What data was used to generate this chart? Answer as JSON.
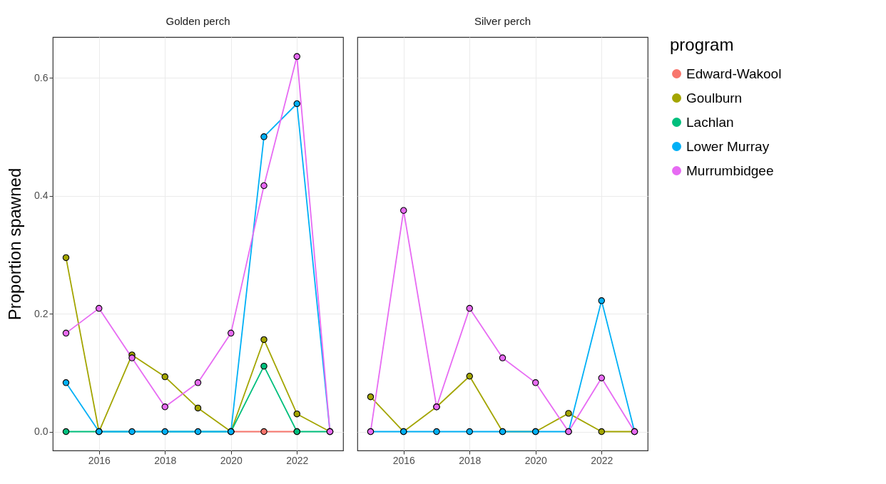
{
  "chart_data": [
    {
      "type": "line",
      "title": "Golden perch",
      "ylabel": "Proportion spawned",
      "x": [
        2015,
        2016,
        2017,
        2018,
        2019,
        2020,
        2021,
        2022,
        2023
      ],
      "xlim": [
        2014.6,
        2023.4
      ],
      "xticks": [
        2016,
        2018,
        2020,
        2022
      ],
      "ylim": [
        -0.032,
        0.669
      ],
      "yticks": [
        {
          "value": 0,
          "label": "0.0"
        },
        0.2,
        0.4,
        0.6
      ],
      "grid": true,
      "marker": "circle",
      "legend": "right",
      "legend_title": "program",
      "series": [
        {
          "name": "Edward-Wakool",
          "color": "#f8766d",
          "values": [
            null,
            null,
            null,
            null,
            null,
            0,
            0,
            0,
            null
          ]
        },
        {
          "name": "Goulburn",
          "color": "#a3a500",
          "values": [
            0.295,
            0,
            0.13,
            0.093,
            0.04,
            0,
            0.156,
            0.03,
            0
          ]
        },
        {
          "name": "Lachlan",
          "color": "#00bf7d",
          "values": [
            0,
            0,
            null,
            null,
            null,
            0,
            0.111,
            0,
            0
          ]
        },
        {
          "name": "Lower Murray",
          "color": "#00b0f6",
          "values": [
            0.083,
            0,
            0,
            0,
            0,
            0,
            0.5,
            0.556,
            0
          ]
        },
        {
          "name": "Murrumbidgee",
          "color": "#e76bf3",
          "values": [
            0.167,
            0.209,
            0.125,
            0.042,
            0.083,
            0.167,
            0.417,
            0.636,
            0
          ]
        }
      ]
    },
    {
      "type": "line",
      "title": "Silver perch",
      "x": [
        2015,
        2016,
        2017,
        2018,
        2019,
        2020,
        2021,
        2022,
        2023
      ],
      "xlim": [
        2014.6,
        2023.4
      ],
      "xticks": [
        2016,
        2018,
        2020,
        2022
      ],
      "ylim": [
        -0.032,
        0.669
      ],
      "yticks": [
        0,
        0.2,
        0.4,
        0.6
      ],
      "grid": true,
      "marker": "circle",
      "tick_labels": "x",
      "legend": "right",
      "series": [
        {
          "name": "Edward-Wakool",
          "color": "#f8766d",
          "values": [
            null,
            null,
            null,
            null,
            null,
            null,
            null,
            null,
            null
          ]
        },
        {
          "name": "Goulburn",
          "color": "#a3a500",
          "values": [
            0.059,
            0,
            0.042,
            0.094,
            0,
            0,
            0.031,
            0,
            0
          ]
        },
        {
          "name": "Lachlan",
          "color": "#00bf7d",
          "values": [
            null,
            null,
            null,
            null,
            null,
            null,
            null,
            null,
            null
          ]
        },
        {
          "name": "Lower Murray",
          "color": "#00b0f6",
          "values": [
            0,
            0,
            0,
            0,
            0,
            0,
            0,
            0.222,
            0
          ]
        },
        {
          "name": "Murrumbidgee",
          "color": "#e76bf3",
          "values": [
            0,
            0.375,
            0.042,
            0.209,
            0.125,
            0.083,
            0,
            0.091,
            0
          ]
        }
      ]
    }
  ]
}
